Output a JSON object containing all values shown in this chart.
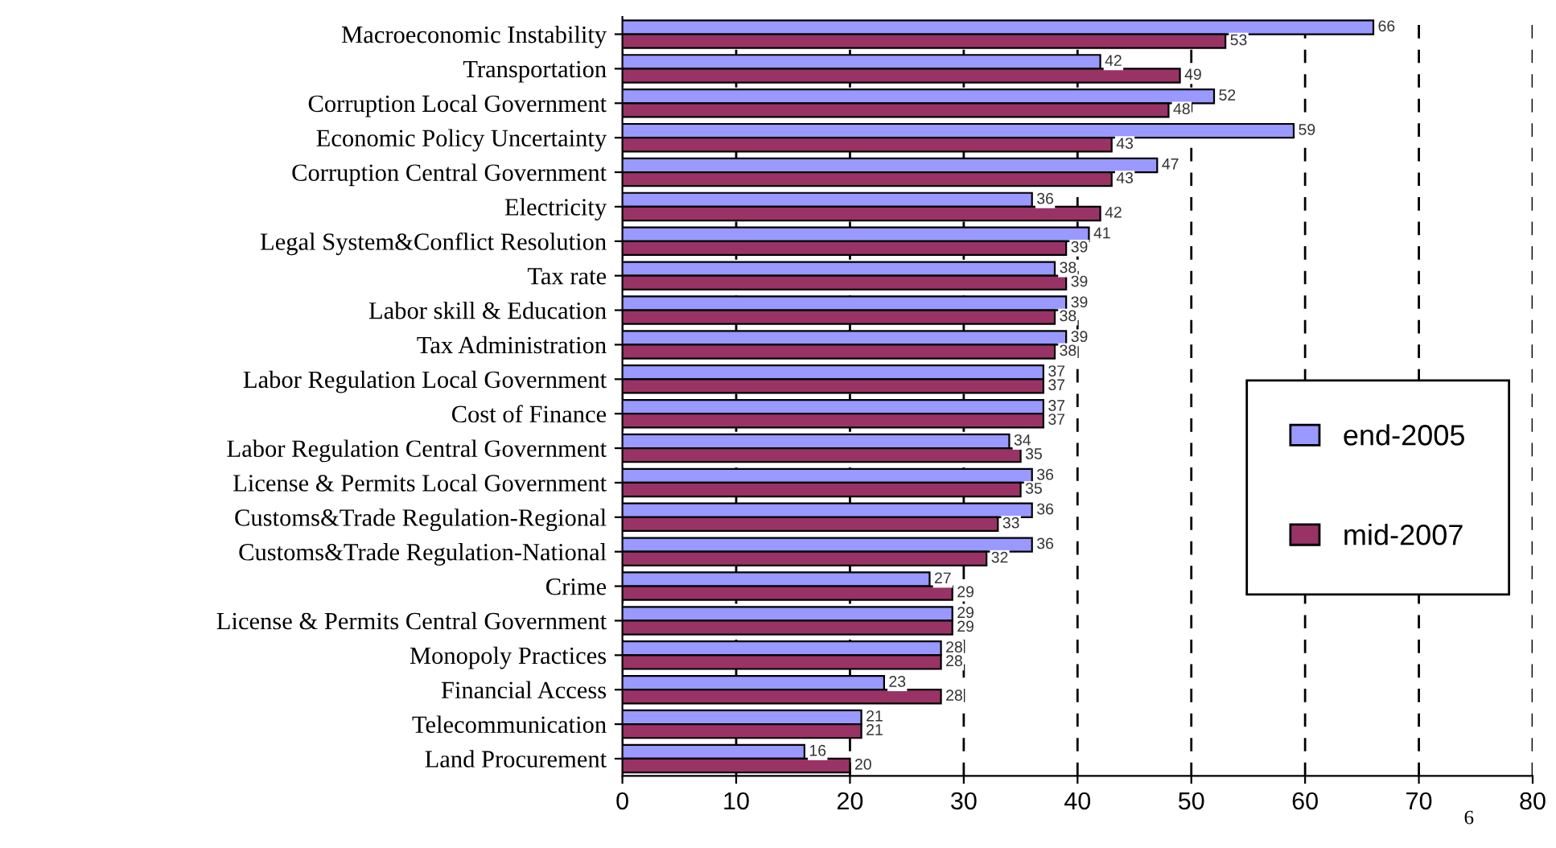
{
  "chart_data": {
    "type": "bar",
    "orientation": "horizontal",
    "categories": [
      "Macroeconomic Instability",
      "Transportation",
      "Corruption Local Government",
      "Economic Policy Uncertainty",
      "Corruption Central Government",
      "Electricity",
      "Legal System&Conflict Resolution",
      "Tax rate",
      "Labor skill & Education",
      "Tax Administration",
      "Labor Regulation Local Government",
      "Cost of Finance",
      "Labor Regulation Central Government",
      "License & Permits Local Government",
      "Customs&Trade Regulation-Regional",
      "Customs&Trade Regulation-National",
      "Crime",
      "License & Permits Central Government",
      "Monopoly Practices",
      "Financial Access",
      "Telecommunication",
      "Land Procurement"
    ],
    "series": [
      {
        "name": "end-2005",
        "color": "#9999ff",
        "values": [
          66,
          42,
          52,
          59,
          47,
          36,
          41,
          38,
          39,
          39,
          37,
          37,
          34,
          36,
          36,
          36,
          27,
          29,
          28,
          23,
          21,
          16
        ]
      },
      {
        "name": "mid-2007",
        "color": "#993366",
        "values": [
          53,
          49,
          48,
          43,
          43,
          42,
          39,
          39,
          38,
          38,
          37,
          37,
          35,
          35,
          33,
          32,
          29,
          29,
          28,
          28,
          21,
          20
        ]
      }
    ],
    "xlim": [
      0,
      80
    ],
    "xticks": [
      0,
      10,
      20,
      30,
      40,
      50,
      60,
      70,
      80
    ],
    "data_labels": true,
    "grid": "x",
    "legend": "right",
    "annotations": [
      "6"
    ]
  }
}
